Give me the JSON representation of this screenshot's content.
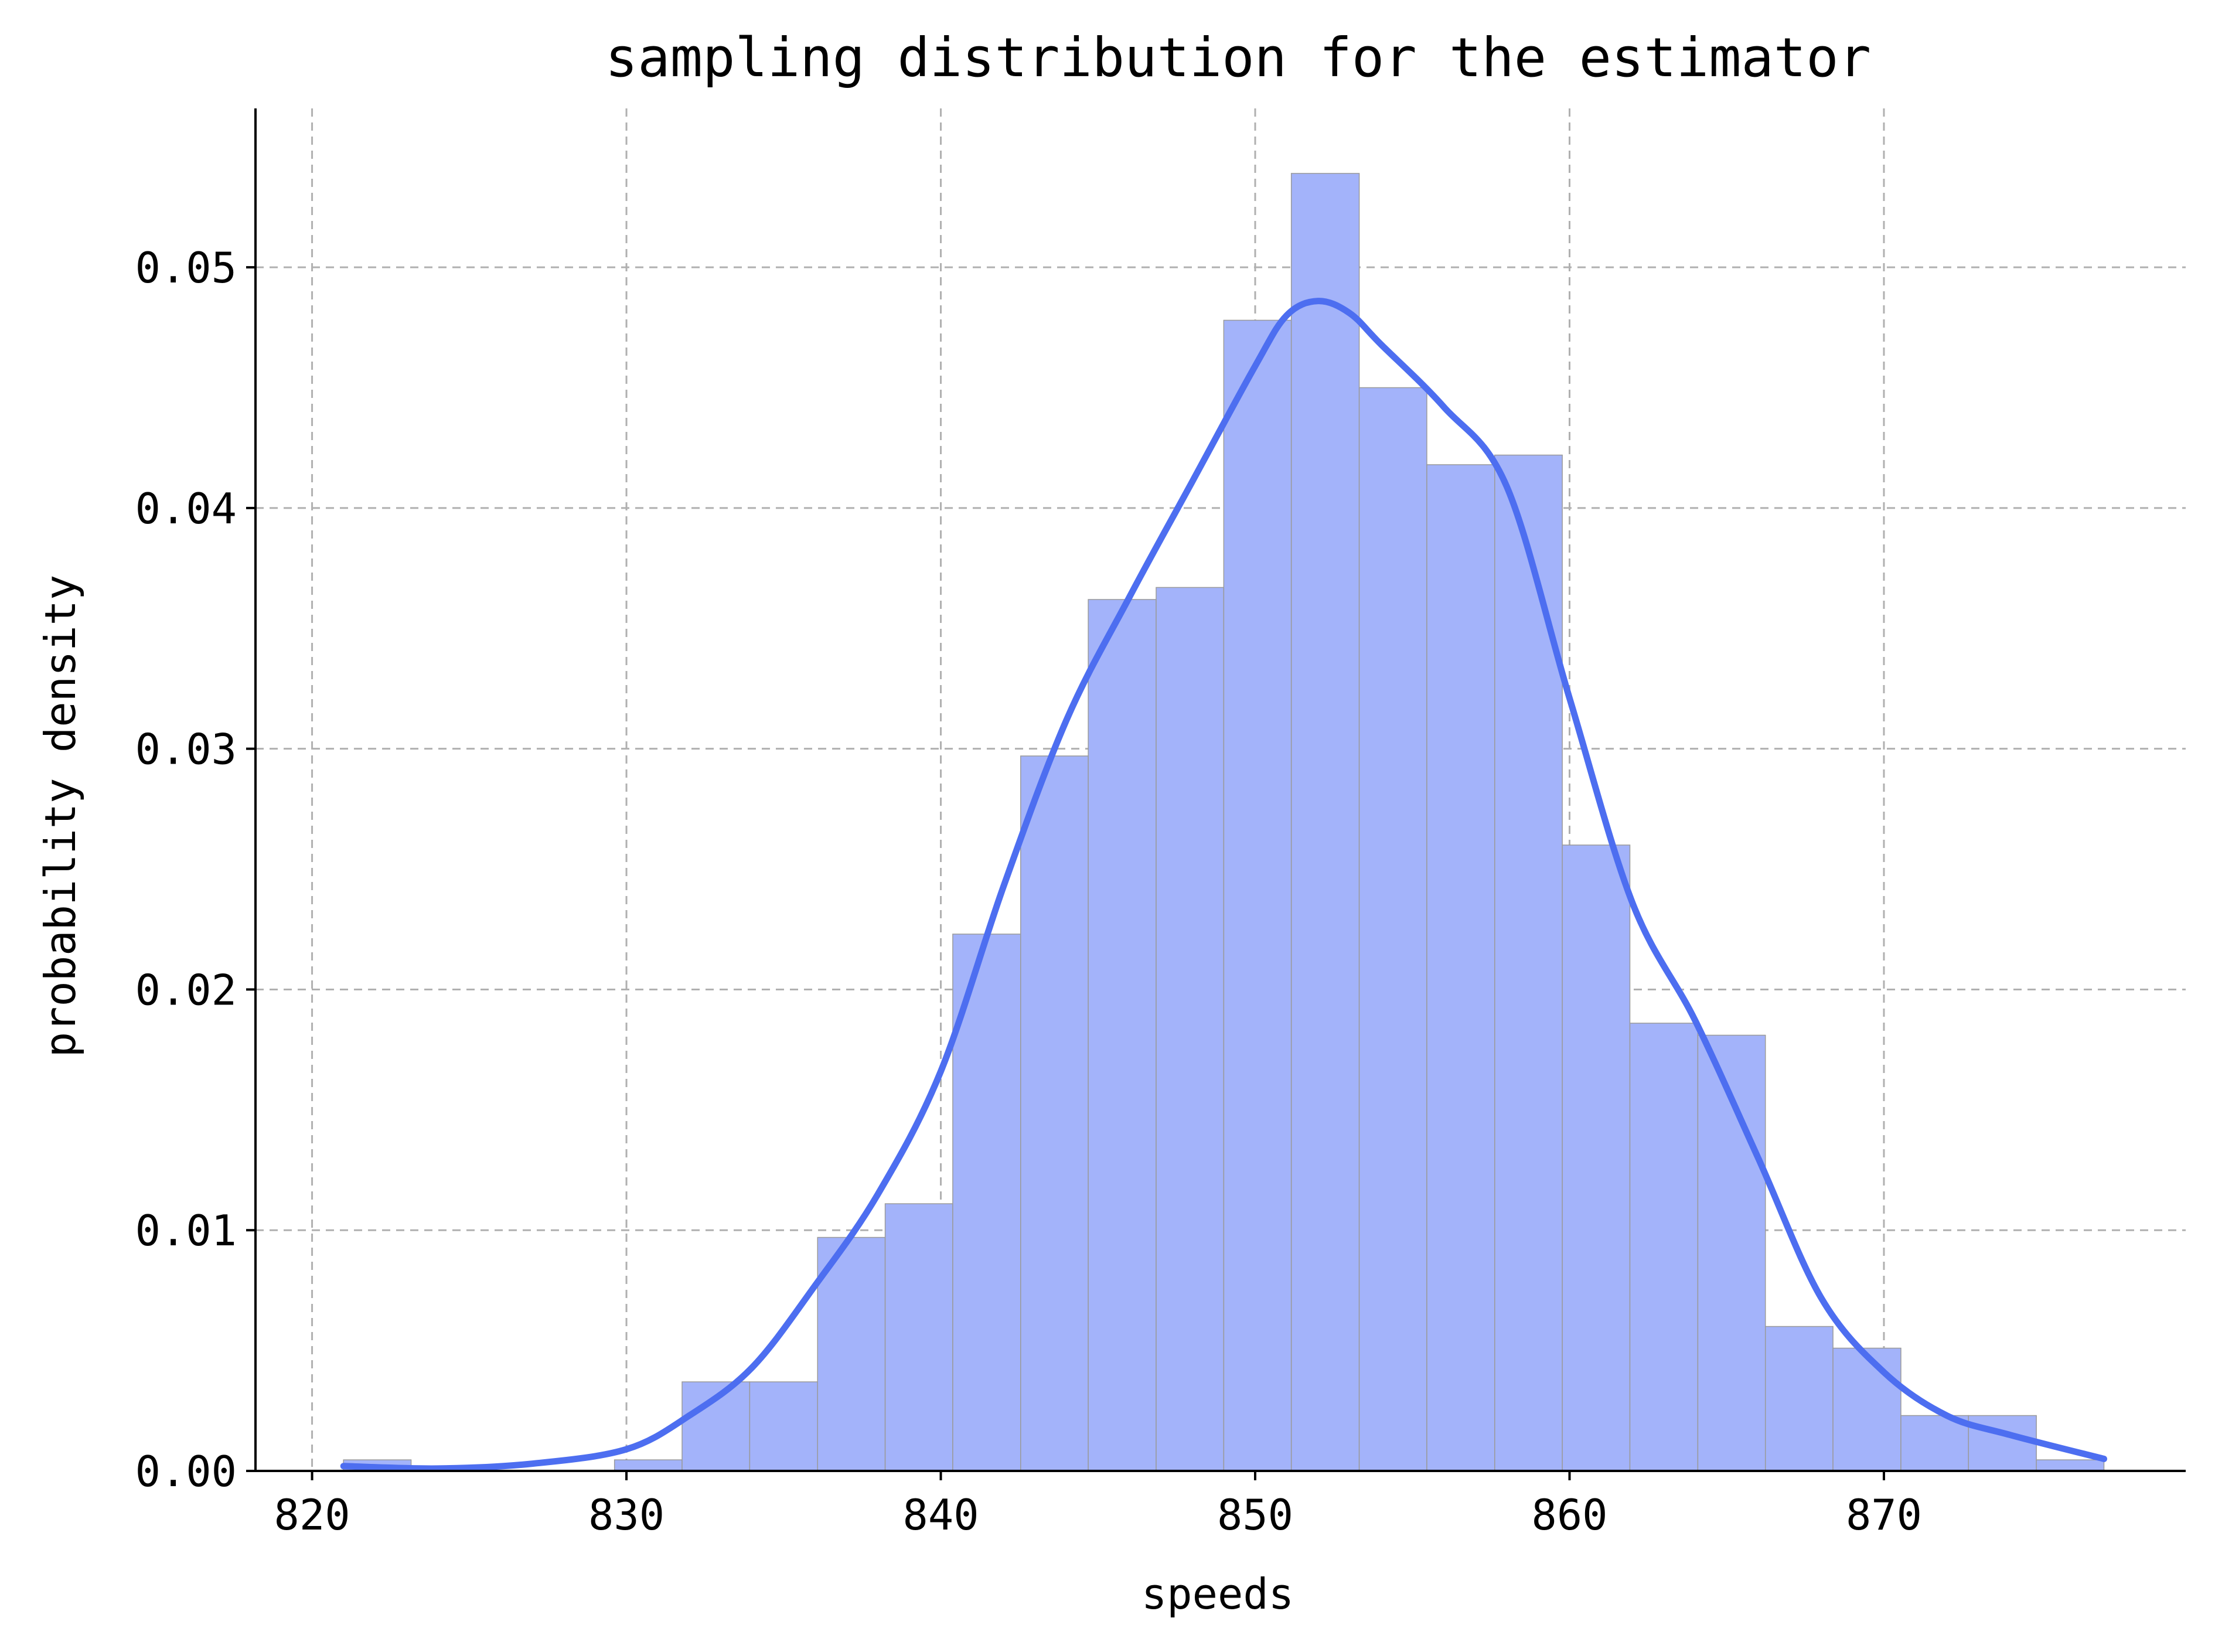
{
  "chart_data": {
    "type": "bar",
    "title": "sampling distribution for the estimator",
    "xlabel": "speeds",
    "ylabel": "probability density",
    "xlim": [
      818.2,
      879.6
    ],
    "ylim": [
      0,
      0.0566
    ],
    "xticks": [
      820,
      830,
      840,
      850,
      860,
      870
    ],
    "xtick_labels": [
      "820",
      "830",
      "840",
      "850",
      "860",
      "870"
    ],
    "yticks": [
      0.0,
      0.01,
      0.02,
      0.03,
      0.04,
      0.05
    ],
    "ytick_labels": [
      "0.00",
      "0.01",
      "0.02",
      "0.03",
      "0.04",
      "0.05"
    ],
    "grid": true,
    "bin_edges": [
      821.0,
      823.15,
      825.31,
      827.46,
      829.62,
      831.77,
      833.92,
      836.08,
      838.23,
      840.38,
      842.54,
      844.69,
      846.85,
      849.0,
      851.15,
      853.31,
      855.46,
      857.62,
      859.77,
      861.92,
      864.08,
      866.23,
      868.38,
      870.54,
      872.69,
      874.85,
      877.0
    ],
    "values": [
      0.00046,
      0.0,
      0.0,
      0.0,
      0.00046,
      0.0037,
      0.0037,
      0.0097,
      0.0111,
      0.0223,
      0.0297,
      0.0362,
      0.0367,
      0.0478,
      0.0539,
      0.045,
      0.0418,
      0.0422,
      0.026,
      0.0186,
      0.0181,
      0.006,
      0.0051,
      0.0023,
      0.0023,
      0.00046
    ],
    "kde": {
      "x": [
        821,
        824,
        827,
        830,
        832,
        834,
        836,
        838,
        840,
        842,
        844,
        846,
        848,
        850,
        851,
        852,
        853,
        854,
        856,
        858,
        860,
        862,
        864,
        866,
        868,
        870,
        872,
        874,
        877
      ],
      "y": [
        0.0002,
        0.0001,
        0.0003,
        0.0009,
        0.0023,
        0.0043,
        0.0077,
        0.0115,
        0.0166,
        0.0243,
        0.0312,
        0.0363,
        0.0411,
        0.0459,
        0.048,
        0.0486,
        0.0481,
        0.0468,
        0.0442,
        0.0409,
        0.0321,
        0.0236,
        0.0187,
        0.013,
        0.0072,
        0.0041,
        0.0023,
        0.0015,
        0.0005
      ]
    },
    "colors": {
      "bar_fill": "#a3b3fa",
      "bar_edge": "#9a9a9a",
      "kde_line": "#4d6ef0"
    }
  }
}
